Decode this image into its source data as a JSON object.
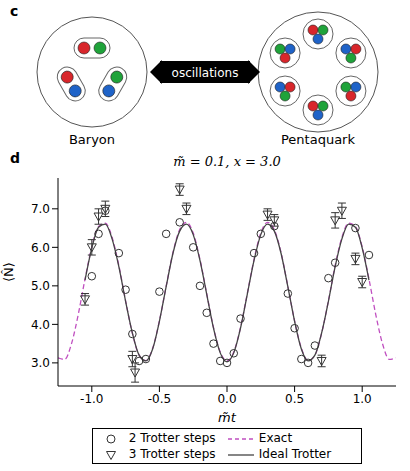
{
  "panel_c": {
    "letter": "c",
    "left_label": "Baryon",
    "right_label": "Pentaquark",
    "arrow_label": "oscillations"
  },
  "chart_data": {
    "panel": "d",
    "type": "line",
    "title": "m̃ = 0.1, x = 3.0",
    "xlabel": "m̃t",
    "ylabel": "⟨N̂⟩",
    "xlim": [
      -1.25,
      1.25
    ],
    "xticks": [
      {
        "value": -1,
        "label": "-1.0"
      },
      {
        "value": -0.5,
        "label": "-0.5"
      },
      {
        "value": 0,
        "label": "0.0"
      },
      {
        "value": 0.5,
        "label": "0.5"
      },
      {
        "value": 1,
        "label": "1.0"
      }
    ],
    "ylim": [
      2.4,
      7.8
    ],
    "yticks": [
      {
        "value": 3,
        "label": "3.0"
      },
      {
        "value": 4,
        "label": "4.0"
      },
      {
        "value": 5,
        "label": "5.0"
      },
      {
        "value": 6,
        "label": "6.0"
      },
      {
        "value": 7,
        "label": "7.0"
      }
    ],
    "legend": "bottom",
    "series": [
      {
        "name": "2 Trotter steps",
        "type": "scatter",
        "marker": "circle",
        "color": "#333333",
        "x": [
          -1.0,
          -0.95,
          -0.9,
          -0.8,
          -0.75,
          -0.7,
          -0.65,
          -0.6,
          -0.5,
          -0.45,
          -0.35,
          -0.25,
          -0.2,
          -0.15,
          -0.1,
          -0.05,
          0.0,
          0.05,
          0.1,
          0.2,
          0.25,
          0.35,
          0.45,
          0.5,
          0.55,
          0.6,
          0.65,
          0.75,
          0.8,
          0.95,
          1.05
        ],
        "values": [
          5.25,
          6.35,
          6.95,
          5.85,
          4.9,
          3.75,
          3.05,
          3.1,
          4.85,
          6.35,
          6.65,
          6.0,
          5.0,
          4.3,
          3.5,
          3.05,
          3.0,
          3.25,
          4.15,
          5.85,
          6.35,
          6.55,
          4.8,
          3.9,
          3.1,
          3.0,
          3.45,
          5.2,
          5.6,
          6.5,
          5.8
        ]
      },
      {
        "name": "Exact",
        "type": "line",
        "line_style": "dashed",
        "color": "#c04fc0",
        "x": [
          -1.25,
          -1.2,
          -1.15,
          -1.1,
          -1.05,
          -1.0,
          -0.95,
          -0.9,
          -0.85,
          -0.8,
          -0.75,
          -0.7,
          -0.65,
          -0.6,
          -0.55,
          -0.5,
          -0.45,
          -0.4,
          -0.35,
          -0.3,
          -0.25,
          -0.2,
          -0.15,
          -0.1,
          -0.05,
          0.0,
          0.05,
          0.1,
          0.15,
          0.2,
          0.25,
          0.3,
          0.35,
          0.4,
          0.45,
          0.5,
          0.55,
          0.6,
          0.65,
          0.7,
          0.75,
          0.8,
          0.85,
          0.9,
          0.95,
          1.0,
          1.05,
          1.1,
          1.15,
          1.2,
          1.25
        ],
        "values": [
          3.13,
          3.09,
          3.5,
          4.26,
          5.18,
          6.01,
          6.54,
          6.63,
          6.26,
          5.53,
          4.61,
          3.77,
          3.2,
          3.06,
          3.38,
          4.09,
          4.99,
          5.86,
          6.46,
          6.65,
          6.37,
          5.69,
          4.8,
          3.92,
          3.28,
          3.05,
          3.28,
          3.92,
          4.8,
          5.69,
          6.37,
          6.65,
          6.46,
          5.86,
          4.99,
          4.09,
          3.38,
          3.06,
          3.2,
          3.77,
          4.61,
          5.53,
          6.26,
          6.63,
          6.54,
          6.01,
          5.18,
          4.26,
          3.5,
          3.09,
          3.13
        ]
      },
      {
        "name": "3 Trotter steps",
        "type": "scatter",
        "marker": "triangle-down",
        "color": "#333333",
        "x": [
          -1.05,
          -1.0,
          -0.95,
          -0.9,
          -0.7,
          -0.68,
          -0.35,
          -0.3,
          0.3,
          0.35,
          0.7,
          0.8,
          0.85,
          0.95,
          1.0
        ],
        "values": [
          4.65,
          6.0,
          6.8,
          7.0,
          3.1,
          2.75,
          7.5,
          7.0,
          6.85,
          6.7,
          3.05,
          6.7,
          6.95,
          5.7,
          5.1
        ],
        "errors": [
          0.15,
          0.2,
          0.2,
          0.2,
          0.2,
          0.25,
          0.15,
          0.15,
          0.15,
          0.15,
          0.15,
          0.2,
          0.2,
          0.15,
          0.15
        ]
      },
      {
        "name": "Ideal Trotter",
        "type": "line",
        "line_style": "solid",
        "color": "#444444",
        "x": [
          -1.05,
          -1.0,
          -0.95,
          -0.9,
          -0.85,
          -0.8,
          -0.75,
          -0.7,
          -0.65,
          -0.6,
          -0.55,
          -0.5,
          -0.45,
          -0.4,
          -0.35,
          -0.3,
          -0.25,
          -0.2,
          -0.15,
          -0.1,
          -0.05,
          0.0,
          0.05,
          0.1,
          0.15,
          0.2,
          0.25,
          0.3,
          0.35,
          0.4,
          0.45,
          0.5,
          0.55,
          0.6,
          0.65,
          0.7,
          0.75,
          0.8,
          0.85,
          0.9,
          0.95,
          1.0,
          1.05
        ],
        "values": [
          5.15,
          5.98,
          6.52,
          6.6,
          6.22,
          5.5,
          4.6,
          3.78,
          3.2,
          3.05,
          3.36,
          4.08,
          4.98,
          5.84,
          6.42,
          6.6,
          6.33,
          5.66,
          4.78,
          3.9,
          3.26,
          3.03,
          3.26,
          3.9,
          4.78,
          5.66,
          6.33,
          6.6,
          6.42,
          5.84,
          4.98,
          4.08,
          3.36,
          3.05,
          3.2,
          3.78,
          4.6,
          5.5,
          6.22,
          6.6,
          6.52,
          5.98,
          5.15
        ]
      }
    ]
  }
}
